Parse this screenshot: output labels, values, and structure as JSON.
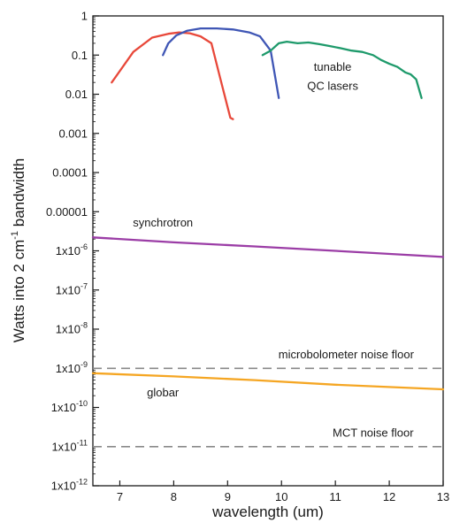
{
  "chart_data": {
    "type": "line",
    "xlabel": "wavelength (um)",
    "ylabel": "Watts into 2 cm-1 bandwidth",
    "ylabel_parts": {
      "pre": "Watts into 2 cm",
      "sup": "-1",
      "post": " bandwidth"
    },
    "xlim": [
      6.5,
      13
    ],
    "ylim": [
      1e-12,
      1
    ],
    "yscale": "log",
    "grid": false,
    "x_ticks": [
      7,
      8,
      9,
      10,
      11,
      12,
      13
    ],
    "x_tick_labels": [
      "7",
      "8",
      "9",
      "10",
      "11",
      "12",
      "13"
    ],
    "y_ticks": [
      {
        "value": 1,
        "label": "1"
      },
      {
        "value": 0.1,
        "label": "0.1"
      },
      {
        "value": 0.01,
        "label": "0.01"
      },
      {
        "value": 0.001,
        "label": "0.001"
      },
      {
        "value": 0.0001,
        "label": "0.0001"
      },
      {
        "value": 1e-05,
        "label": "0.00001"
      },
      {
        "value": 1e-06,
        "label": "1x10",
        "exp": "-6"
      },
      {
        "value": 1e-07,
        "label": "1x10",
        "exp": "-7"
      },
      {
        "value": 1e-08,
        "label": "1x10",
        "exp": "-8"
      },
      {
        "value": 1e-09,
        "label": "1x10",
        "exp": "-9"
      },
      {
        "value": 1e-10,
        "label": "1x10",
        "exp": "-10"
      },
      {
        "value": 1e-11,
        "label": "1x10",
        "exp": "-11"
      },
      {
        "value": 1e-12,
        "label": "1x10",
        "exp": "-12"
      }
    ],
    "series": [
      {
        "color": "#e8483a",
        "style": "solid",
        "points": [
          [
            6.85,
            0.02
          ],
          [
            7.25,
            0.12
          ],
          [
            7.6,
            0.28
          ],
          [
            7.9,
            0.35
          ],
          [
            8.1,
            0.38
          ],
          [
            8.3,
            0.36
          ],
          [
            8.5,
            0.3
          ],
          [
            8.7,
            0.2
          ],
          [
            8.85,
            0.03
          ],
          [
            9.05,
            0.0025
          ],
          [
            9.1,
            0.0023
          ]
        ]
      },
      {
        "color": "#3f56b5",
        "style": "solid",
        "points": [
          [
            7.8,
            0.1
          ],
          [
            7.9,
            0.2
          ],
          [
            8.05,
            0.32
          ],
          [
            8.25,
            0.42
          ],
          [
            8.5,
            0.48
          ],
          [
            8.8,
            0.48
          ],
          [
            9.1,
            0.45
          ],
          [
            9.4,
            0.38
          ],
          [
            9.6,
            0.3
          ],
          [
            9.8,
            0.13
          ],
          [
            9.95,
            0.008
          ]
        ]
      },
      {
        "color": "#1e9a6b",
        "style": "solid",
        "points": [
          [
            9.65,
            0.1
          ],
          [
            9.8,
            0.13
          ],
          [
            9.95,
            0.2
          ],
          [
            10.1,
            0.22
          ],
          [
            10.3,
            0.2
          ],
          [
            10.5,
            0.21
          ],
          [
            10.7,
            0.19
          ],
          [
            10.9,
            0.17
          ],
          [
            11.1,
            0.15
          ],
          [
            11.3,
            0.13
          ],
          [
            11.5,
            0.12
          ],
          [
            11.7,
            0.1
          ],
          [
            11.85,
            0.075
          ],
          [
            12.0,
            0.06
          ],
          [
            12.15,
            0.05
          ],
          [
            12.3,
            0.036
          ],
          [
            12.4,
            0.032
          ],
          [
            12.5,
            0.024
          ],
          [
            12.6,
            0.008
          ]
        ]
      },
      {
        "color": "#9b3da6",
        "style": "solid",
        "points": [
          [
            6.5,
            2.2e-06
          ],
          [
            8.0,
            1.65e-06
          ],
          [
            9.5,
            1.3e-06
          ],
          [
            11.0,
            1e-06
          ],
          [
            13.0,
            7e-07
          ]
        ]
      },
      {
        "color": "#f5a623",
        "style": "solid",
        "points": [
          [
            6.5,
            7.5e-10
          ],
          [
            8.0,
            6.2e-10
          ],
          [
            9.5,
            5e-10
          ],
          [
            11.0,
            3.8e-10
          ],
          [
            13.0,
            2.9e-10
          ]
        ]
      },
      {
        "color": "#8a8a8a",
        "style": "dashed",
        "points": [
          [
            6.5,
            1e-09
          ],
          [
            13.0,
            1e-09
          ]
        ]
      },
      {
        "color": "#8a8a8a",
        "style": "dashed",
        "points": [
          [
            6.5,
            1e-11
          ],
          [
            13.0,
            1e-11
          ]
        ]
      }
    ],
    "annotations": [
      {
        "text": "tunable",
        "x": 10.95,
        "y": 0.04
      },
      {
        "text": "QC lasers",
        "x": 10.95,
        "y": 0.013
      },
      {
        "text": "synchrotron",
        "x": 7.8,
        "y": 4.2e-06
      },
      {
        "text": "microbolometer noise floor",
        "x": 11.2,
        "y": 1.8e-09
      },
      {
        "text": "globar",
        "x": 7.8,
        "y": 1.9e-10
      },
      {
        "text": "MCT noise floor",
        "x": 11.7,
        "y": 1.8e-11
      }
    ]
  }
}
